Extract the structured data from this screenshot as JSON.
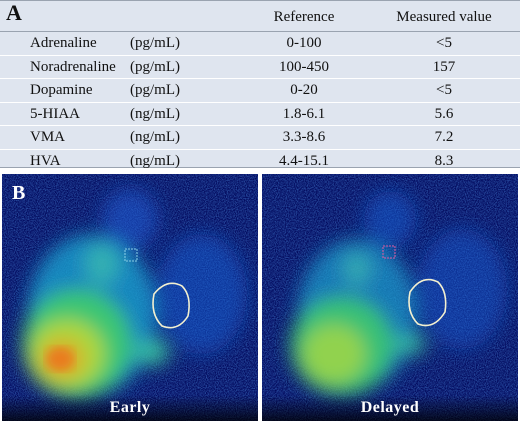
{
  "panel_a": {
    "letter": "A",
    "headers": {
      "reference": "Reference",
      "measured": "Measured value"
    },
    "rows": [
      {
        "name": "Adrenaline",
        "unit": "(pg/mL)",
        "reference": "0-100",
        "value": "<5"
      },
      {
        "name": "Noradrenaline",
        "unit": "(pg/mL)",
        "reference": "100-450",
        "value": "157"
      },
      {
        "name": "Dopamine",
        "unit": "(pg/mL)",
        "reference": "0-20",
        "value": "<5"
      },
      {
        "name": "5-HIAA",
        "unit": "(ng/mL)",
        "reference": "1.8-6.1",
        "value": "5.6"
      },
      {
        "name": "VMA",
        "unit": "(ng/mL)",
        "reference": "3.3-8.6",
        "value": "7.2"
      },
      {
        "name": "HVA",
        "unit": "(ng/mL)",
        "reference": "4.4-15.1",
        "value": "8.3"
      }
    ]
  },
  "panel_b": {
    "letter": "B",
    "images": [
      {
        "caption": "Early"
      },
      {
        "caption": "Delayed"
      }
    ],
    "colors": {
      "background": "#020a5e",
      "roi_outline": "#f3f0d0",
      "marker": "#e05aa0"
    }
  }
}
